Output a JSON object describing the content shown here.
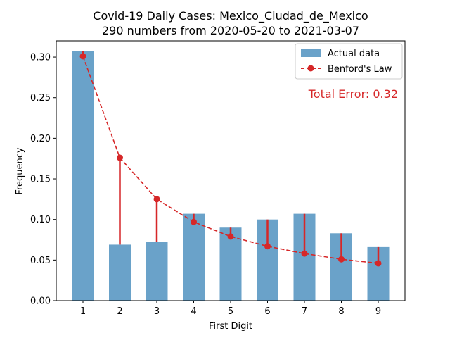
{
  "chart_data": {
    "type": "bar",
    "title_line1": "Covid-19 Daily Cases: Mexico_Ciudad_de_Mexico",
    "title_line2": "290 numbers from 2020-05-20 to 2021-03-07",
    "xlabel": "First Digit",
    "ylabel": "Frequency",
    "categories": [
      "1",
      "2",
      "3",
      "4",
      "5",
      "6",
      "7",
      "8",
      "9"
    ],
    "ylim": [
      0,
      0.32
    ],
    "yticks": [
      "0.00",
      "0.05",
      "0.10",
      "0.15",
      "0.20",
      "0.25",
      "0.30"
    ],
    "series": [
      {
        "name": "Actual data",
        "type": "bar",
        "color": "#6aa2c9",
        "values": [
          0.307,
          0.069,
          0.072,
          0.107,
          0.09,
          0.1,
          0.107,
          0.083,
          0.066
        ]
      },
      {
        "name": "Benford's Law",
        "type": "line",
        "color": "#d62728",
        "style": "dashed",
        "values": [
          0.301,
          0.176,
          0.125,
          0.097,
          0.079,
          0.067,
          0.058,
          0.051,
          0.046
        ]
      }
    ],
    "annotation": "Total Error: 0.32",
    "annotation_color": "#d62728",
    "legend_position": "top-right",
    "grid": false
  }
}
